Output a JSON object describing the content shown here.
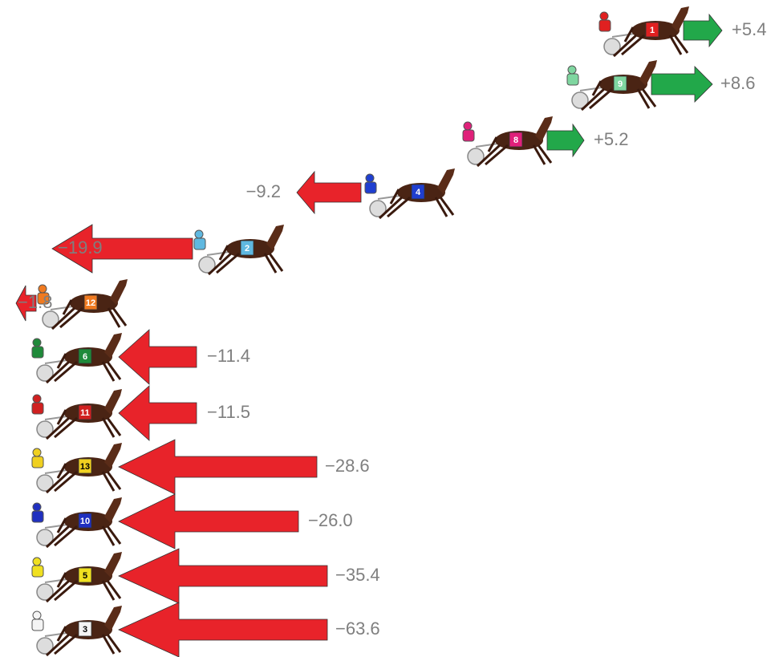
{
  "rows": [
    {
      "number": "1",
      "change": "+5.4",
      "color": "#e02020"
    },
    {
      "number": "9",
      "change": "+8.6",
      "color": "#7fd6a0"
    },
    {
      "number": "8",
      "change": "+5.2",
      "color": "#e0207a"
    },
    {
      "number": "4",
      "change": "−9.2",
      "color": "#1f3fd0"
    },
    {
      "number": "2",
      "change": "−19.9",
      "color": "#5fb8e0"
    },
    {
      "number": "12",
      "change": "−1.8",
      "color": "#f07a20"
    },
    {
      "number": "6",
      "change": "−11.4",
      "color": "#1f8a3a"
    },
    {
      "number": "11",
      "change": "−11.5",
      "color": "#d02020"
    },
    {
      "number": "13",
      "change": "−28.6",
      "color": "#f0d020"
    },
    {
      "number": "10",
      "change": "−26.0",
      "color": "#2030c0"
    },
    {
      "number": "5",
      "change": "−35.4",
      "color": "#f0e020"
    },
    {
      "number": "3",
      "change": "−63.6",
      "color": "#f4f4f4"
    }
  ]
}
